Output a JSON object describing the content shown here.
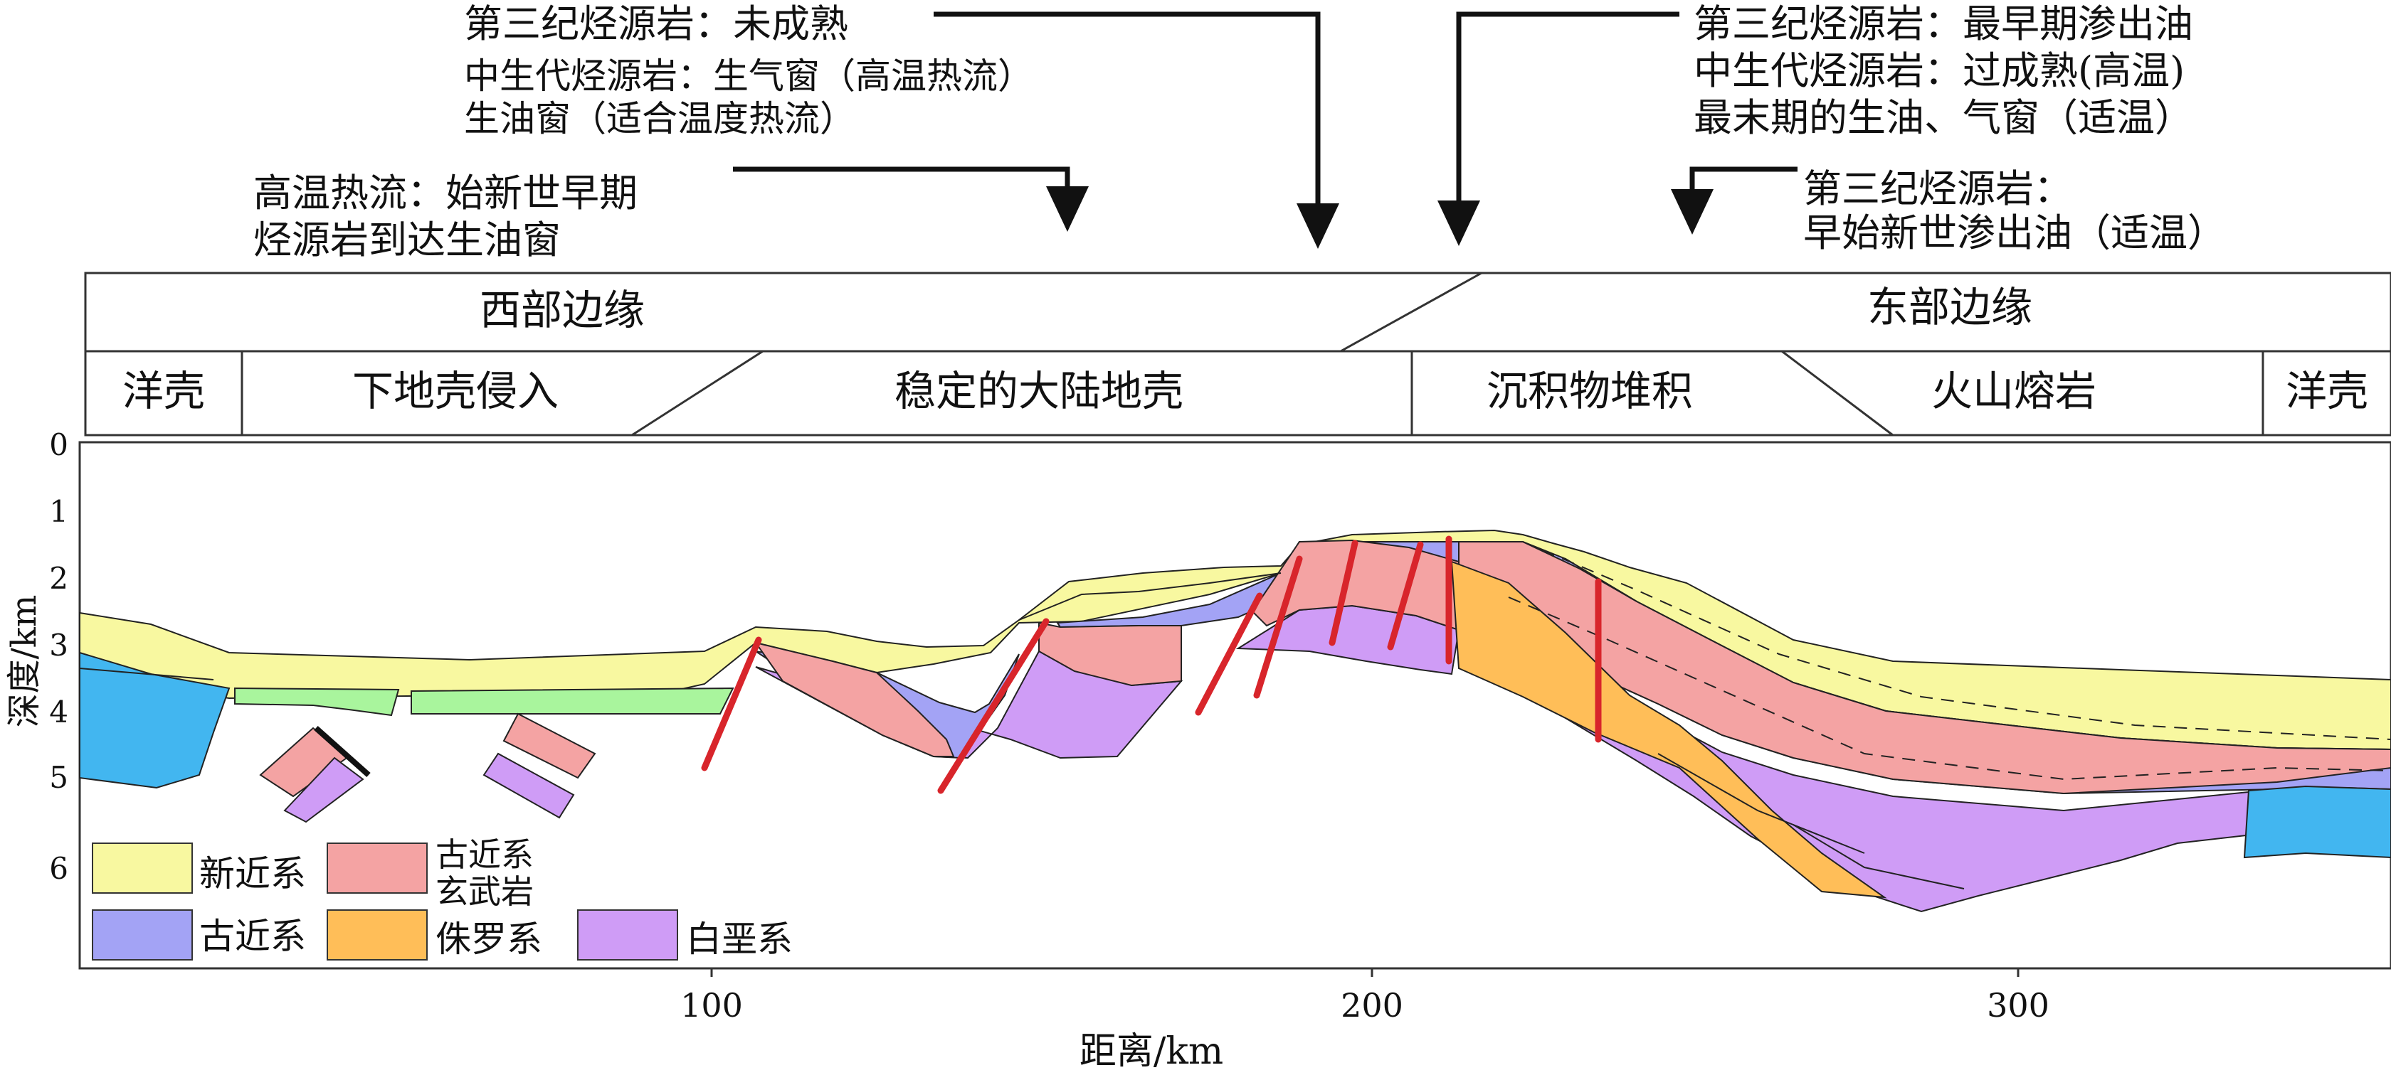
{
  "annotations": {
    "tertiary_immature": "第三纪烃源岩：未成熟",
    "mesozoic_gas": "中生代烃源岩：生气窗（高温热流）",
    "mesozoic_oil": "生油窗（适合温度热流）",
    "hot_flow_1": "高温热流：始新世早期",
    "hot_flow_2": "烃源岩到达生油窗",
    "east_1": "第三纪烃源岩：最早期渗出油",
    "east_2": "中生代烃源岩：过成熟(高温)",
    "east_3": "最末期的生油、气窗（适温）",
    "east_4": "第三纪烃源岩：",
    "east_5": "早始新世渗出油（适温）"
  },
  "zones": {
    "west_margin": "西部边缘",
    "east_margin": "东部边缘",
    "ocean_crust_w": "洋壳",
    "lower_crust_intrusion": "下地壳侵入",
    "stable_continental_crust": "稳定的大陆地壳",
    "sediment_accumulation": "沉积物堆积",
    "volcanic_lava": "火山熔岩",
    "ocean_crust_e": "洋壳"
  },
  "axes": {
    "ylabel": "深度/km",
    "xlabel": "距离/km",
    "y_ticks": [
      "0",
      "1",
      "2",
      "3",
      "4",
      "5",
      "6"
    ],
    "x_ticks": [
      "100",
      "200",
      "300"
    ]
  },
  "legend": {
    "neogene": "新近系",
    "paleogene_basalt_1": "古近系",
    "paleogene_basalt_2": "玄武岩",
    "paleogene": "古近系",
    "jurassic": "侏罗系",
    "cretaceous": "白垩系"
  },
  "colors": {
    "neogene": "#f8f8a0",
    "paleogene": "#a3a3f5",
    "paleogene_basalt": "#f4a3a3",
    "jurassic": "#ffbe58",
    "cretaceous": "#cf9cf6",
    "ocean_crust": "#42b6f0",
    "intrusion": "#a9f59d",
    "fault": "#d8252b"
  }
}
